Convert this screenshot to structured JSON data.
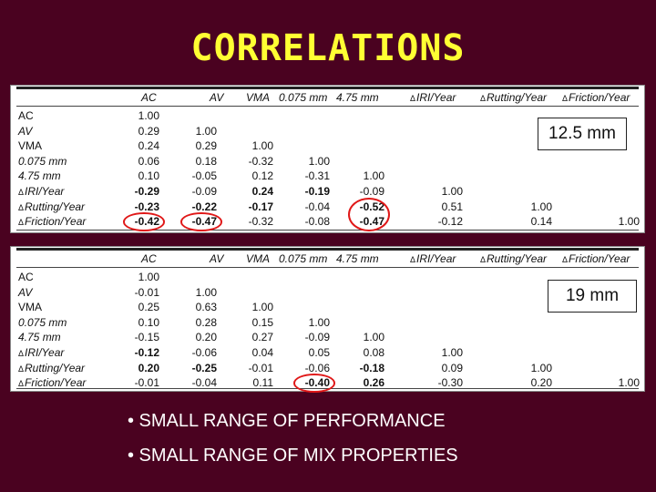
{
  "title": "CORRELATIONS",
  "delta_symbol": "Δ",
  "headers": [
    "AC",
    "AV",
    "VMA",
    "0.075 mm",
    "4.75 mm",
    "IRI/Year",
    "Rutting/Year",
    "Friction/Year"
  ],
  "row_labels": [
    "AC",
    "AV",
    "VMA",
    "0.075 mm",
    "4.75 mm",
    "IRI/Year",
    "Rutting/Year",
    "Friction/Year"
  ],
  "tables": [
    {
      "size_label": "12.5 mm",
      "rows": [
        [
          "1.00"
        ],
        [
          "0.29",
          "1.00"
        ],
        [
          "0.24",
          "0.29",
          "1.00"
        ],
        [
          "0.06",
          "0.18",
          "-0.32",
          "1.00"
        ],
        [
          "0.10",
          "-0.05",
          "0.12",
          "-0.31",
          "1.00"
        ],
        [
          "-0.29",
          "-0.09",
          "0.24",
          "-0.19",
          "-0.09",
          "1.00"
        ],
        [
          "-0.23",
          "-0.22",
          "-0.17",
          "-0.04",
          "-0.52",
          "0.51",
          "1.00"
        ],
        [
          "-0.42",
          "-0.47",
          "-0.32",
          "-0.08",
          "-0.47",
          "-0.12",
          "0.14",
          "1.00"
        ]
      ]
    },
    {
      "size_label": "19 mm",
      "rows": [
        [
          "1.00"
        ],
        [
          "-0.01",
          "1.00"
        ],
        [
          "0.25",
          "0.63",
          "1.00"
        ],
        [
          "0.10",
          "0.28",
          "0.15",
          "1.00"
        ],
        [
          "-0.15",
          "0.20",
          "0.27",
          "-0.09",
          "1.00"
        ],
        [
          "-0.12",
          "-0.06",
          "0.04",
          "0.05",
          "0.08",
          "1.00"
        ],
        [
          "0.20",
          "-0.25",
          "-0.01",
          "-0.06",
          "-0.18",
          "0.09",
          "1.00"
        ],
        [
          "-0.01",
          "-0.04",
          "0.11",
          "-0.40",
          "0.26",
          "-0.30",
          "0.20",
          "1.00"
        ]
      ]
    }
  ],
  "bullets": [
    "• SMALL RANGE OF PERFORMANCE",
    "• SMALL RANGE OF MIX PROPERTIES"
  ]
}
